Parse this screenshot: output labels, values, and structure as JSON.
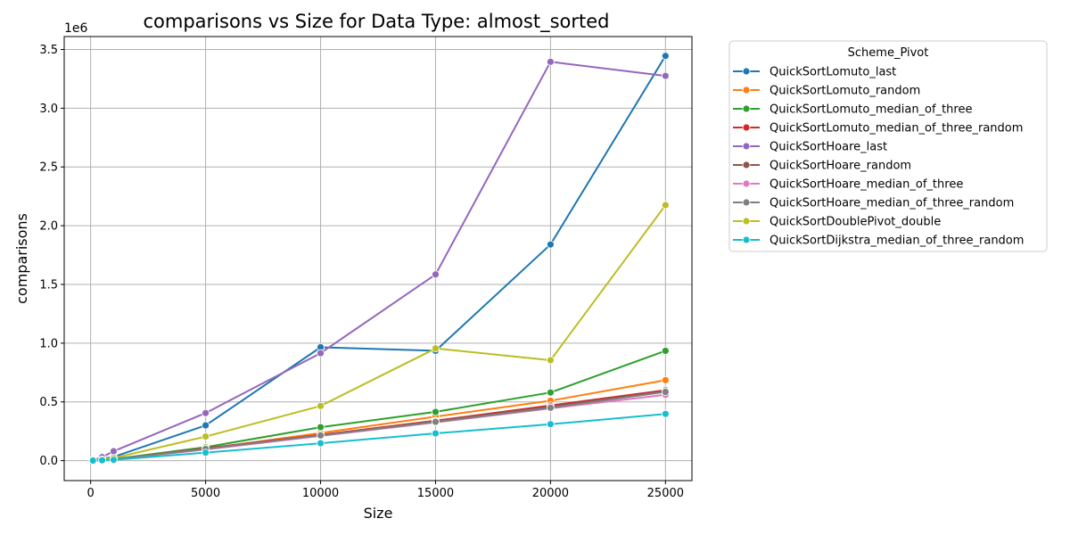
{
  "chart_data": {
    "type": "line",
    "title": "comparisons vs Size for Data Type: almost_sorted",
    "xlabel": "Size",
    "ylabel": "comparisons",
    "y_multiplier_label": "1e6",
    "xlim": [
      -1150,
      26150
    ],
    "ylim": [
      -170000,
      3610000
    ],
    "xticks": [
      0,
      5000,
      10000,
      15000,
      20000,
      25000
    ],
    "xtick_labels": [
      "0",
      "5000",
      "10000",
      "15000",
      "20000",
      "25000"
    ],
    "yticks": [
      0,
      500000,
      1000000,
      1500000,
      2000000,
      2500000,
      3000000,
      3500000
    ],
    "ytick_labels": [
      "0.0",
      "0.5",
      "1.0",
      "1.5",
      "2.0",
      "2.5",
      "3.0",
      "3.5"
    ],
    "grid": true,
    "legend": {
      "title": "Scheme_Pivot",
      "placement": "outside-top-right"
    },
    "x": [
      100,
      500,
      1000,
      5000,
      10000,
      15000,
      20000,
      25000
    ],
    "series": [
      {
        "name": "QuickSortLomuto_last",
        "color": "#1f77b4",
        "values": [
          5000,
          15000,
          32000,
          300000,
          965000,
          935000,
          1840000,
          3445000
        ]
      },
      {
        "name": "QuickSortLomuto_random",
        "color": "#ff7f0e",
        "values": [
          800,
          5000,
          11000,
          100000,
          235000,
          375000,
          510000,
          685000
        ]
      },
      {
        "name": "QuickSortLomuto_median_of_three",
        "color": "#2ca02c",
        "values": [
          900,
          6000,
          13000,
          115000,
          285000,
          415000,
          580000,
          935000
        ]
      },
      {
        "name": "QuickSortLomuto_median_of_three_random",
        "color": "#d62728",
        "values": [
          700,
          4500,
          10000,
          105000,
          220000,
          340000,
          470000,
          600000
        ]
      },
      {
        "name": "QuickSortHoare_last",
        "color": "#9467bd",
        "values": [
          5000,
          30000,
          80000,
          405000,
          915000,
          1585000,
          3395000,
          3275000
        ]
      },
      {
        "name": "QuickSortHoare_random",
        "color": "#8c564b",
        "values": [
          700,
          4500,
          10000,
          100000,
          215000,
          335000,
          460000,
          590000
        ]
      },
      {
        "name": "QuickSortHoare_median_of_three",
        "color": "#e377c2",
        "values": [
          600,
          4000,
          9000,
          95000,
          210000,
          325000,
          445000,
          560000
        ]
      },
      {
        "name": "QuickSortHoare_median_of_three_random",
        "color": "#7f7f7f",
        "values": [
          700,
          4500,
          10000,
          100000,
          215000,
          330000,
          450000,
          585000
        ]
      },
      {
        "name": "QuickSortDoublePivot_double",
        "color": "#bcbd22",
        "values": [
          2000,
          10000,
          22000,
          205000,
          465000,
          955000,
          855000,
          2175000
        ]
      },
      {
        "name": "QuickSortDijkstra_median_of_three_random",
        "color": "#17becf",
        "values": [
          500,
          3000,
          7000,
          68000,
          148000,
          232000,
          310000,
          398000
        ]
      }
    ]
  }
}
